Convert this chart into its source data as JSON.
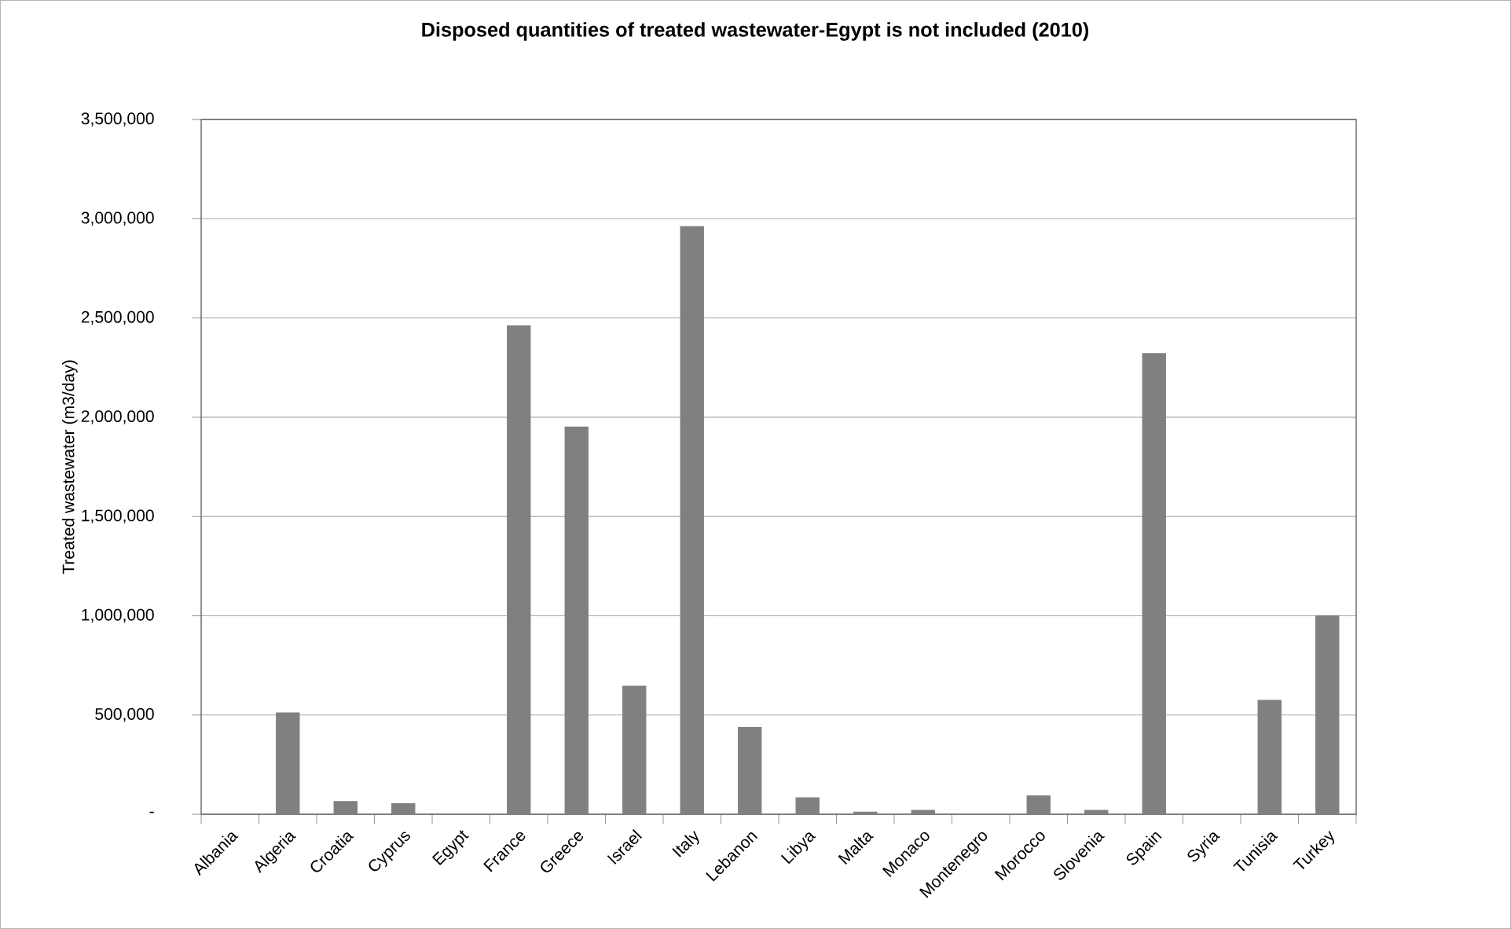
{
  "chart_data": {
    "type": "bar",
    "title": "Disposed quantities of treated wastewater-Egypt is not included (2010)",
    "ylabel": "Treated wastewater (m3/day)",
    "categories": [
      "Albania",
      "Algeria",
      "Croatia",
      "Cyprus",
      "Egypt",
      "France",
      "Greece",
      "Israel",
      "Italy",
      "Lebanon",
      "Libya",
      "Malta",
      "Monaco",
      "Montenegro",
      "Morocco",
      "Slovenia",
      "Spain",
      "Syria",
      "Tunisia",
      "Turkey"
    ],
    "values": [
      0,
      510000,
      63000,
      53000,
      0,
      2460000,
      1950000,
      645000,
      2960000,
      437000,
      82000,
      10000,
      19000,
      0,
      92000,
      19000,
      2320000,
      0,
      573000,
      1000000
    ],
    "color": "#808080",
    "ylim": [
      0,
      3500000
    ],
    "yticks": [
      {
        "value": 0,
        "label": "-"
      },
      {
        "value": 500000,
        "label": "500,000"
      },
      {
        "value": 1000000,
        "label": "1,000,000"
      },
      {
        "value": 1500000,
        "label": "1,500,000"
      },
      {
        "value": 2000000,
        "label": "2,000,000"
      },
      {
        "value": 2500000,
        "label": "2,500,000"
      },
      {
        "value": 3000000,
        "label": "3,000,000"
      },
      {
        "value": 3500000,
        "label": "3,500,000"
      }
    ],
    "grid": "y"
  }
}
